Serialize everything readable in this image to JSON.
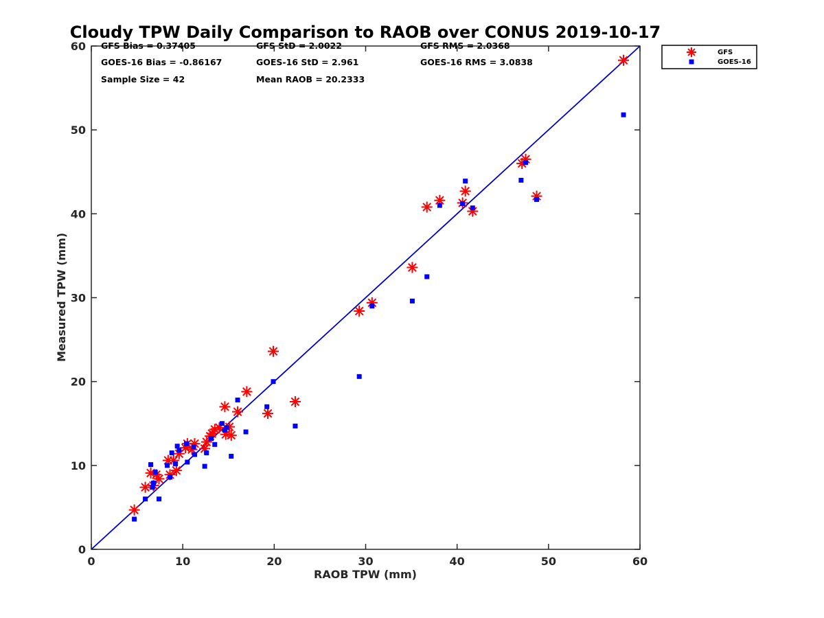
{
  "chart_data": {
    "type": "scatter",
    "title": "Cloudy TPW Daily Comparison to RAOB over CONUS 2019-10-17",
    "xlabel": "RAOB TPW (mm)",
    "ylabel": "Measured TPW (mm)",
    "xlim": [
      0,
      60
    ],
    "ylim": [
      0,
      60
    ],
    "xticks": [
      "0",
      "10",
      "20",
      "30",
      "40",
      "50",
      "60"
    ],
    "yticks": [
      "0",
      "10",
      "20",
      "30",
      "40",
      "50",
      "60"
    ],
    "grid": false,
    "legend_position": "outside-top-right",
    "stats": {
      "gfs_bias": "GFS Bias = 0.37405",
      "gfs_std": "GFS StD = 2.0022",
      "gfs_rms": "GFS RMS = 2.0368",
      "goes_bias": "GOES-16 Bias = -0.86167",
      "goes_std": "GOES-16 StD = 2.961",
      "goes_rms": "GOES-16 RMS = 3.0838",
      "sample_size": "Sample Size = 42",
      "mean_raob": "Mean RAOB = 20.2333"
    },
    "reference_line": {
      "from": [
        0,
        0
      ],
      "to": [
        60,
        60
      ],
      "color": "#0000cc"
    },
    "series": [
      {
        "name": "GFS",
        "marker": "asterisk",
        "color": "#ff0000",
        "points": [
          [
            4.7,
            4.7
          ],
          [
            5.9,
            7.4
          ],
          [
            6.5,
            9.1
          ],
          [
            6.8,
            7.6
          ],
          [
            7.1,
            8.9
          ],
          [
            7.4,
            8.4
          ],
          [
            8.4,
            10.6
          ],
          [
            8.6,
            8.9
          ],
          [
            9.0,
            10.6
          ],
          [
            9.3,
            9.4
          ],
          [
            9.6,
            11.4
          ],
          [
            10.3,
            12.1
          ],
          [
            10.5,
            12.6
          ],
          [
            11.3,
            12.6
          ],
          [
            12.4,
            12.0
          ],
          [
            12.6,
            12.8
          ],
          [
            13.0,
            13.5
          ],
          [
            13.5,
            14.3
          ],
          [
            14.0,
            14.5
          ],
          [
            14.6,
            17.0
          ],
          [
            14.7,
            13.7
          ],
          [
            15.1,
            14.6
          ],
          [
            15.3,
            13.6
          ],
          [
            16.0,
            16.4
          ],
          [
            17.0,
            18.8
          ],
          [
            19.3,
            16.2
          ],
          [
            19.9,
            23.6
          ],
          [
            22.3,
            17.6
          ],
          [
            29.3,
            28.4
          ],
          [
            30.7,
            29.4
          ],
          [
            35.1,
            33.6
          ],
          [
            36.7,
            40.8
          ],
          [
            38.1,
            41.6
          ],
          [
            40.6,
            41.3
          ],
          [
            40.9,
            42.7
          ],
          [
            41.7,
            40.3
          ],
          [
            47.1,
            46.0
          ],
          [
            47.5,
            46.5
          ],
          [
            48.7,
            42.1
          ],
          [
            58.2,
            58.3
          ],
          [
            11.0,
            11.9
          ],
          [
            13.2,
            13.8
          ]
        ]
      },
      {
        "name": "GOES-16",
        "marker": "square",
        "color": "#0000ff",
        "points": [
          [
            4.7,
            3.6
          ],
          [
            5.9,
            6.0
          ],
          [
            6.5,
            10.1
          ],
          [
            6.7,
            7.4
          ],
          [
            6.8,
            7.9
          ],
          [
            7.0,
            9.2
          ],
          [
            7.4,
            6.0
          ],
          [
            8.3,
            10.0
          ],
          [
            8.6,
            8.6
          ],
          [
            8.8,
            11.5
          ],
          [
            9.4,
            12.3
          ],
          [
            9.6,
            11.8
          ],
          [
            10.4,
            12.6
          ],
          [
            10.5,
            10.4
          ],
          [
            11.2,
            12.2
          ],
          [
            11.3,
            11.3
          ],
          [
            12.4,
            9.9
          ],
          [
            12.6,
            11.5
          ],
          [
            13.1,
            13.2
          ],
          [
            13.5,
            12.5
          ],
          [
            14.3,
            15.0
          ],
          [
            14.6,
            14.2
          ],
          [
            14.8,
            14.5
          ],
          [
            15.3,
            11.1
          ],
          [
            16.0,
            17.8
          ],
          [
            16.9,
            14.0
          ],
          [
            19.2,
            17.0
          ],
          [
            19.9,
            20.0
          ],
          [
            22.3,
            14.7
          ],
          [
            29.3,
            20.6
          ],
          [
            30.7,
            29.0
          ],
          [
            35.1,
            29.6
          ],
          [
            36.7,
            32.5
          ],
          [
            38.1,
            41.0
          ],
          [
            40.6,
            41.2
          ],
          [
            40.9,
            43.9
          ],
          [
            41.7,
            40.7
          ],
          [
            47.0,
            44.0
          ],
          [
            47.5,
            46.1
          ],
          [
            48.7,
            41.7
          ],
          [
            58.2,
            51.8
          ],
          [
            9.2,
            10.2
          ]
        ]
      }
    ]
  }
}
